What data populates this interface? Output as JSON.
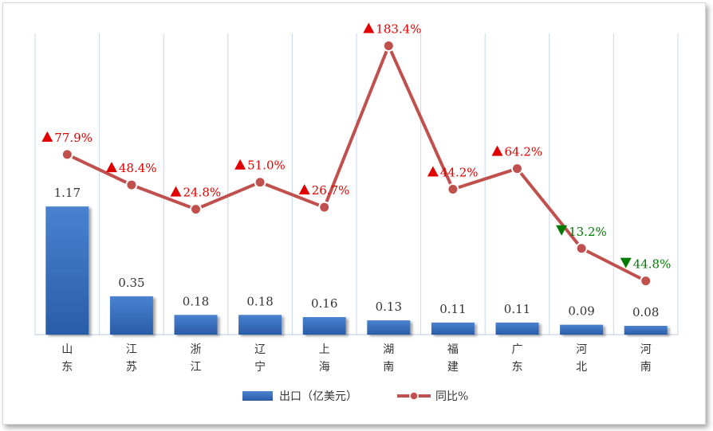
{
  "chart_data": {
    "type": "bar",
    "categories": [
      [
        "山",
        "东"
      ],
      [
        "江",
        "苏"
      ],
      [
        "浙",
        "江"
      ],
      [
        "辽",
        "宁"
      ],
      [
        "上",
        "海"
      ],
      [
        "湖",
        "南"
      ],
      [
        "福",
        "建"
      ],
      [
        "广",
        "东"
      ],
      [
        "河",
        "北"
      ],
      [
        "河",
        "南"
      ]
    ],
    "series": [
      {
        "name": "出口（亿美元）",
        "type": "bar",
        "color": "#3a70c0",
        "values": [
          1.17,
          0.35,
          0.18,
          0.18,
          0.16,
          0.13,
          0.11,
          0.11,
          0.09,
          0.08
        ],
        "labels": [
          "1.17",
          "0.35",
          "0.18",
          "0.18",
          "0.16",
          "0.13",
          "0.11",
          "0.11",
          "0.09",
          "0.08"
        ]
      },
      {
        "name": "同比%",
        "type": "line",
        "color": "#c0504d",
        "values": [
          77.9,
          48.4,
          24.8,
          51.0,
          26.7,
          183.4,
          44.2,
          64.2,
          -13.2,
          -44.8
        ],
        "labels": [
          "77.9%",
          "48.4%",
          "24.8%",
          "51.0%",
          "26.7%",
          "183.4%",
          "44.2%",
          "64.2%",
          "13.2%",
          "44.8%"
        ],
        "directions": [
          "up",
          "up",
          "up",
          "up",
          "up",
          "up",
          "up",
          "up",
          "down",
          "down"
        ]
      }
    ],
    "up_color": "#e00000",
    "down_color": "#007a00",
    "bar_ylim": [
      0,
      2.75
    ],
    "grid": "vertical",
    "legend_position": "bottom"
  }
}
